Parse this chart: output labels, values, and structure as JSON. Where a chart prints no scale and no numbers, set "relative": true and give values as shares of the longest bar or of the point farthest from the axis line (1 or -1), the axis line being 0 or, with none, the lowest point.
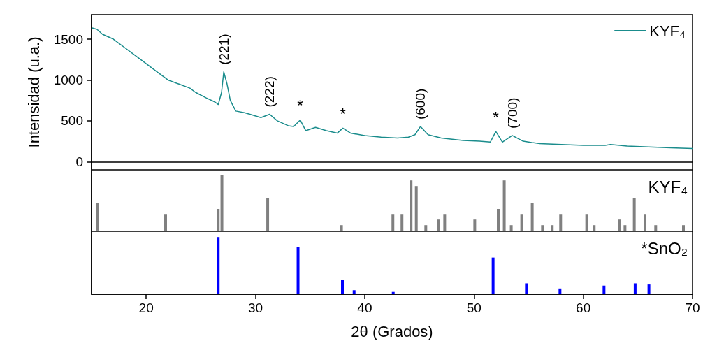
{
  "chart_data": [
    {
      "type": "line",
      "ylabel": "Intensidad (u.a.)",
      "xlim": [
        15,
        70
      ],
      "ylim": [
        -100,
        1800
      ],
      "yticks": [
        0,
        500,
        1000,
        1500
      ],
      "tick_labels": "y",
      "legend": "top right",
      "series": [
        {
          "name": "KYF₄",
          "color": "#1a8c8c",
          "x": [
            15,
            15.5,
            16,
            17,
            18,
            19,
            20,
            21,
            22,
            23,
            24,
            24.5,
            25.5,
            26.3,
            26.6,
            26.9,
            27.1,
            27.4,
            27.7,
            28.2,
            29,
            29.5,
            30.5,
            31.3,
            32,
            33,
            33.5,
            34.1,
            34.6,
            35.5,
            36.5,
            37.5,
            38,
            38.7,
            40,
            41.5,
            43,
            44,
            44.6,
            45.1,
            45.8,
            47,
            49,
            50.5,
            51.5,
            52,
            52.6,
            53.5,
            54.5,
            56,
            58,
            60,
            62,
            62.5,
            64,
            66,
            68,
            70
          ],
          "values": [
            1640,
            1620,
            1560,
            1500,
            1400,
            1300,
            1200,
            1100,
            1000,
            950,
            900,
            850,
            780,
            730,
            700,
            850,
            1100,
            950,
            750,
            620,
            600,
            580,
            540,
            580,
            500,
            440,
            430,
            510,
            380,
            420,
            380,
            350,
            410,
            350,
            320,
            300,
            290,
            300,
            330,
            430,
            330,
            290,
            260,
            250,
            240,
            370,
            240,
            320,
            250,
            220,
            210,
            200,
            200,
            210,
            190,
            180,
            170,
            160
          ]
        }
      ],
      "annotations": [
        {
          "text": "(221)",
          "x": 27.1,
          "y": 1100
        },
        {
          "text": "(222)",
          "x": 31.3,
          "y": 580
        },
        {
          "text": "*",
          "x": 34.1,
          "y": 510
        },
        {
          "text": "*",
          "x": 38,
          "y": 410
        },
        {
          "text": "(600)",
          "x": 45.1,
          "y": 430
        },
        {
          "text": "*",
          "x": 52,
          "y": 370
        },
        {
          "text": "(700)",
          "x": 53.5,
          "y": 320
        }
      ]
    },
    {
      "type": "bar",
      "relative": true,
      "xlim": [
        15,
        70
      ],
      "tick_labels": false,
      "series": [
        {
          "name": "KYF₄",
          "color": "#808080",
          "x": [
            15.51,
            21.78,
            26.59,
            26.93,
            31.12,
            37.87,
            42.58,
            43.41,
            44.24,
            44.72,
            45.59,
            46.76,
            47.32,
            50.07,
            52.22,
            52.77,
            53.41,
            54.37,
            55.33,
            56.27,
            57.16,
            57.93,
            60.32,
            61.0,
            63.33,
            63.82,
            64.67,
            65.65,
            66.63,
            69.17
          ],
          "values": [
            0.51,
            0.31,
            0.4,
            1,
            0.6,
            0.11,
            0.31,
            0.31,
            0.91,
            0.81,
            0.11,
            0.21,
            0.31,
            0.21,
            0.4,
            0.91,
            0.11,
            0.31,
            0.51,
            0.11,
            0.11,
            0.31,
            0.31,
            0.11,
            0.21,
            0.11,
            0.6,
            0.31,
            0.11,
            0.11
          ]
        }
      ]
    },
    {
      "type": "bar",
      "relative": true,
      "xlim": [
        15,
        70
      ],
      "xticks": [
        20,
        30,
        40,
        50,
        60,
        70
      ],
      "xlabel": "2θ (Grados)",
      "tick_labels": "x",
      "series": [
        {
          "name": "*SnO₂",
          "color": "#0000ff",
          "x": [
            26.59,
            33.9,
            37.96,
            39.03,
            42.61,
            51.75,
            54.8,
            57.87,
            61.9,
            64.75,
            66.01
          ],
          "values": [
            1,
            0.82,
            0.25,
            0.07,
            0.04,
            0.64,
            0.19,
            0.1,
            0.15,
            0.19,
            0.17
          ]
        }
      ]
    }
  ]
}
